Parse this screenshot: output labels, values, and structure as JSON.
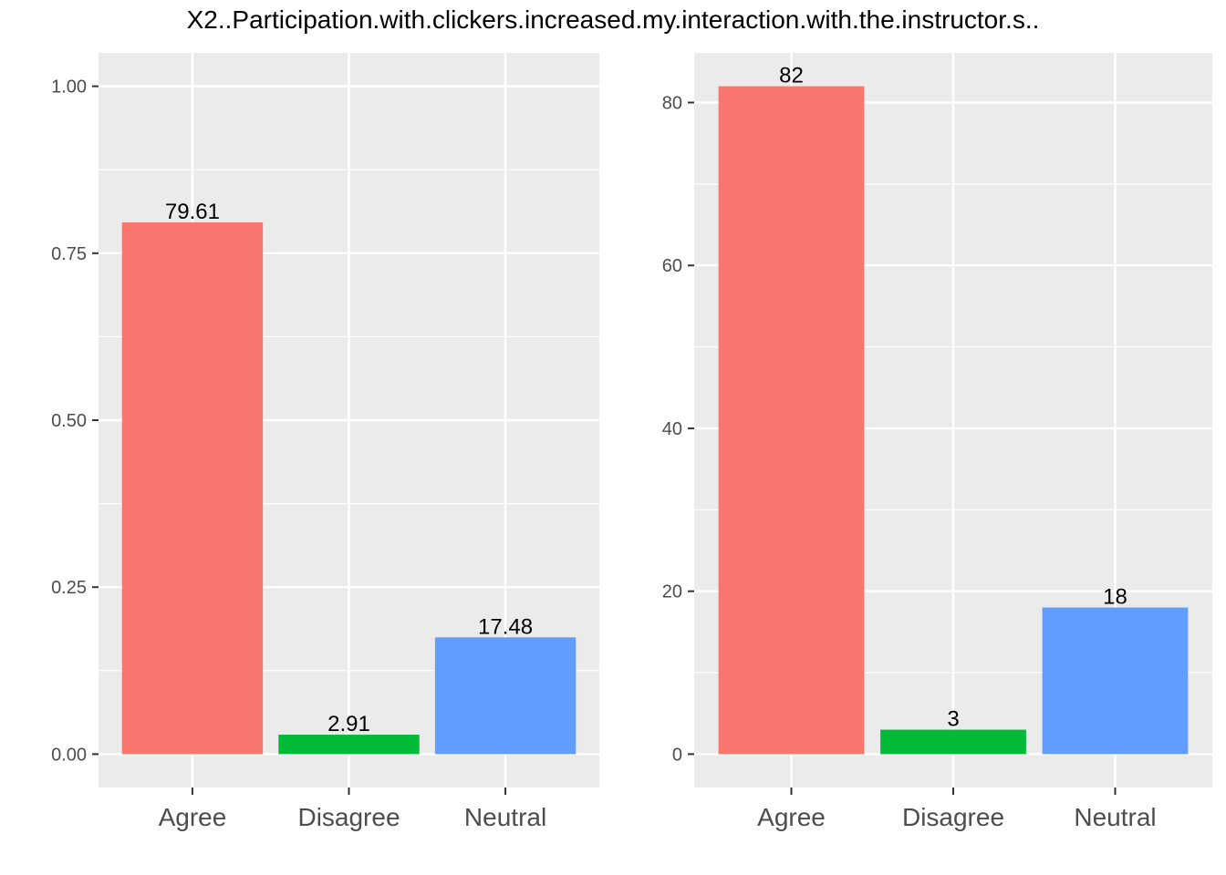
{
  "title": "X2..Participation.with.clickers.increased.my.interaction.with.the.instructor.s..",
  "colors": {
    "Agree": "#F8766D",
    "Disagree": "#00BA38",
    "Neutral": "#619CFF",
    "panel_bg": "#EBEBEB",
    "grid": "#FFFFFF"
  },
  "chart_data": [
    {
      "type": "bar",
      "categories": [
        "Agree",
        "Disagree",
        "Neutral"
      ],
      "values": [
        0.7961,
        0.0291,
        0.1748
      ],
      "data_labels": [
        "79.61",
        "2.91",
        "17.48"
      ],
      "ylim": [
        0,
        1.05
      ],
      "yticks": [
        0,
        0.25,
        0.5,
        0.75,
        1.0
      ],
      "ytick_labels": [
        "0.00",
        "0.25",
        "0.50",
        "0.75",
        "1.00"
      ],
      "xlabel": "",
      "ylabel": "",
      "grid": true,
      "legend": "none"
    },
    {
      "type": "bar",
      "categories": [
        "Agree",
        "Disagree",
        "Neutral"
      ],
      "values": [
        82,
        3,
        18
      ],
      "data_labels": [
        "82",
        "3",
        "18"
      ],
      "ylim": [
        0,
        86.1
      ],
      "yticks": [
        0,
        20,
        40,
        60,
        80
      ],
      "ytick_labels": [
        "0",
        "20",
        "40",
        "60",
        "80"
      ],
      "xlabel": "",
      "ylabel": "",
      "grid": true,
      "legend": "none"
    }
  ]
}
